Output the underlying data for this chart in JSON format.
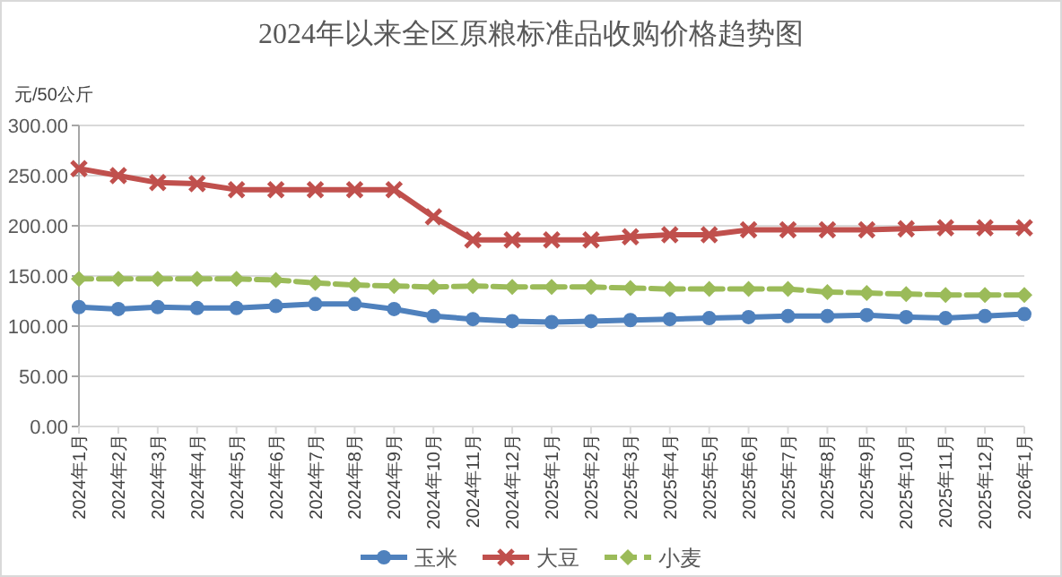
{
  "chart_data": {
    "type": "line",
    "title": "2024年以来全区原粮标准品收购价格趋势图",
    "ylabel": "元/50公斤",
    "categories": [
      "2024年1月",
      "2024年2月",
      "2024年3月",
      "2024年4月",
      "2024年5月",
      "2024年6月",
      "2024年7月",
      "2024年8月",
      "2024年9月",
      "2024年10月",
      "2024年11月",
      "2024年12月",
      "2025年1月",
      "2025年2月",
      "2025年3月",
      "2025年4月",
      "2025年5月",
      "2025年6月",
      "2025年7月",
      "2025年8月",
      "2025年9月",
      "2025年10月",
      "2025年11月",
      "2025年12月",
      "2026年1月"
    ],
    "series": [
      {
        "name": "玉米",
        "color": "#4f81bd",
        "marker": "circle",
        "line_style": "solid",
        "values": [
          119,
          117,
          119,
          118,
          118,
          120,
          122,
          122,
          117,
          110,
          107,
          105,
          104,
          105,
          106,
          107,
          108,
          109,
          110,
          110,
          111,
          109,
          108,
          110,
          112
        ]
      },
      {
        "name": "大豆",
        "color": "#c0504d",
        "marker": "cross",
        "line_style": "solid",
        "values": [
          257,
          250,
          243,
          242,
          236,
          236,
          236,
          236,
          236,
          209,
          186,
          186,
          186,
          186,
          189,
          191,
          191,
          196,
          196,
          196,
          196,
          197,
          198,
          198,
          198
        ]
      },
      {
        "name": "小麦",
        "color": "#9bbb59",
        "marker": "diamond",
        "line_style": "dashed",
        "values": [
          147,
          147,
          147,
          147,
          147,
          146,
          143,
          141,
          140,
          139,
          140,
          139,
          139,
          139,
          138,
          137,
          137,
          137,
          137,
          134,
          133,
          132,
          131,
          131,
          131
        ]
      }
    ],
    "ylim": [
      0,
      300
    ],
    "yticks": [
      {
        "value": 0,
        "label": "0.00"
      },
      {
        "value": 50,
        "label": "50.00"
      },
      {
        "value": 100,
        "label": "100.00"
      },
      {
        "value": 150,
        "label": "150.00"
      },
      {
        "value": 200,
        "label": "200.00"
      },
      {
        "value": 250,
        "label": "250.00"
      },
      {
        "value": 300,
        "label": "300.00"
      }
    ],
    "grid": "y",
    "legend": "bottom"
  }
}
